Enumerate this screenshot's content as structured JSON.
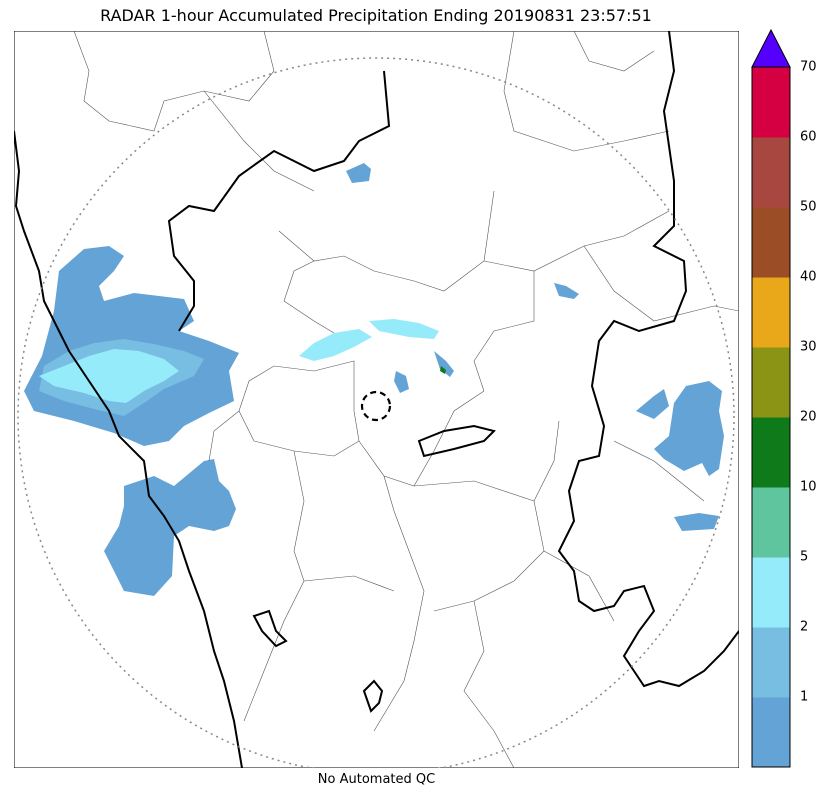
{
  "title": "RADAR 1-hour Accumulated Precipitation Ending 20190831 23:57:51",
  "footer": "No Automated QC",
  "colorbar": {
    "labels": [
      "1",
      "2",
      "5",
      "10",
      "20",
      "30",
      "40",
      "50",
      "60",
      "70"
    ],
    "colors": [
      "#64a3d6",
      "#78bde2",
      "#96ebfb",
      "#5ec59e",
      "#0f7a1a",
      "#8c9416",
      "#e8a81a",
      "#9b4d25",
      "#a8473f",
      "#d50042"
    ],
    "extend_color": "#5500ff"
  },
  "map": {
    "range_ring_color": "#888888",
    "border_color": "#000000"
  }
}
